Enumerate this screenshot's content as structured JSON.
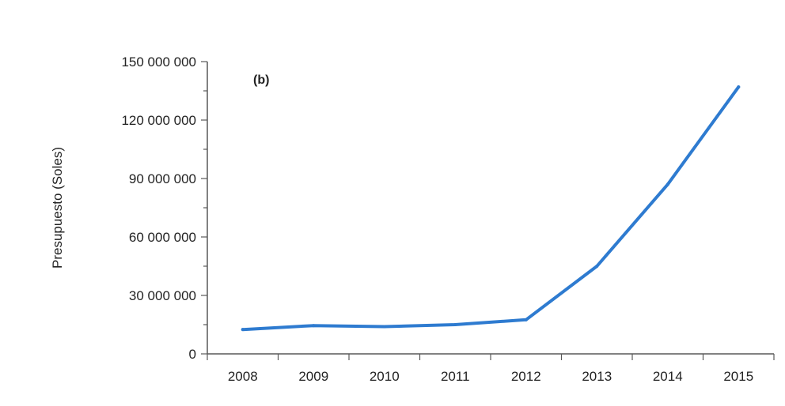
{
  "chart_data": {
    "type": "line",
    "panel_label": "(b)",
    "title": "",
    "xlabel": "",
    "ylabel": "Presupuesto (Soles)",
    "categories": [
      "2008",
      "2009",
      "2010",
      "2011",
      "2012",
      "2013",
      "2014",
      "2015"
    ],
    "series": [
      {
        "values": [
          12500000,
          14500000,
          14000000,
          15000000,
          17500000,
          45000000,
          87000000,
          137000000
        ],
        "color": "#2e7bd0"
      }
    ],
    "ylim": [
      0,
      150000000
    ],
    "yticks": [
      0,
      30000000,
      60000000,
      90000000,
      120000000,
      150000000
    ],
    "ytick_labels": [
      "0",
      "30 000 000",
      "60 000 000",
      "90 000 000",
      "120 000 000",
      "150 000 000"
    ],
    "grid": false,
    "legend": "none",
    "axis_color": "#595959"
  }
}
